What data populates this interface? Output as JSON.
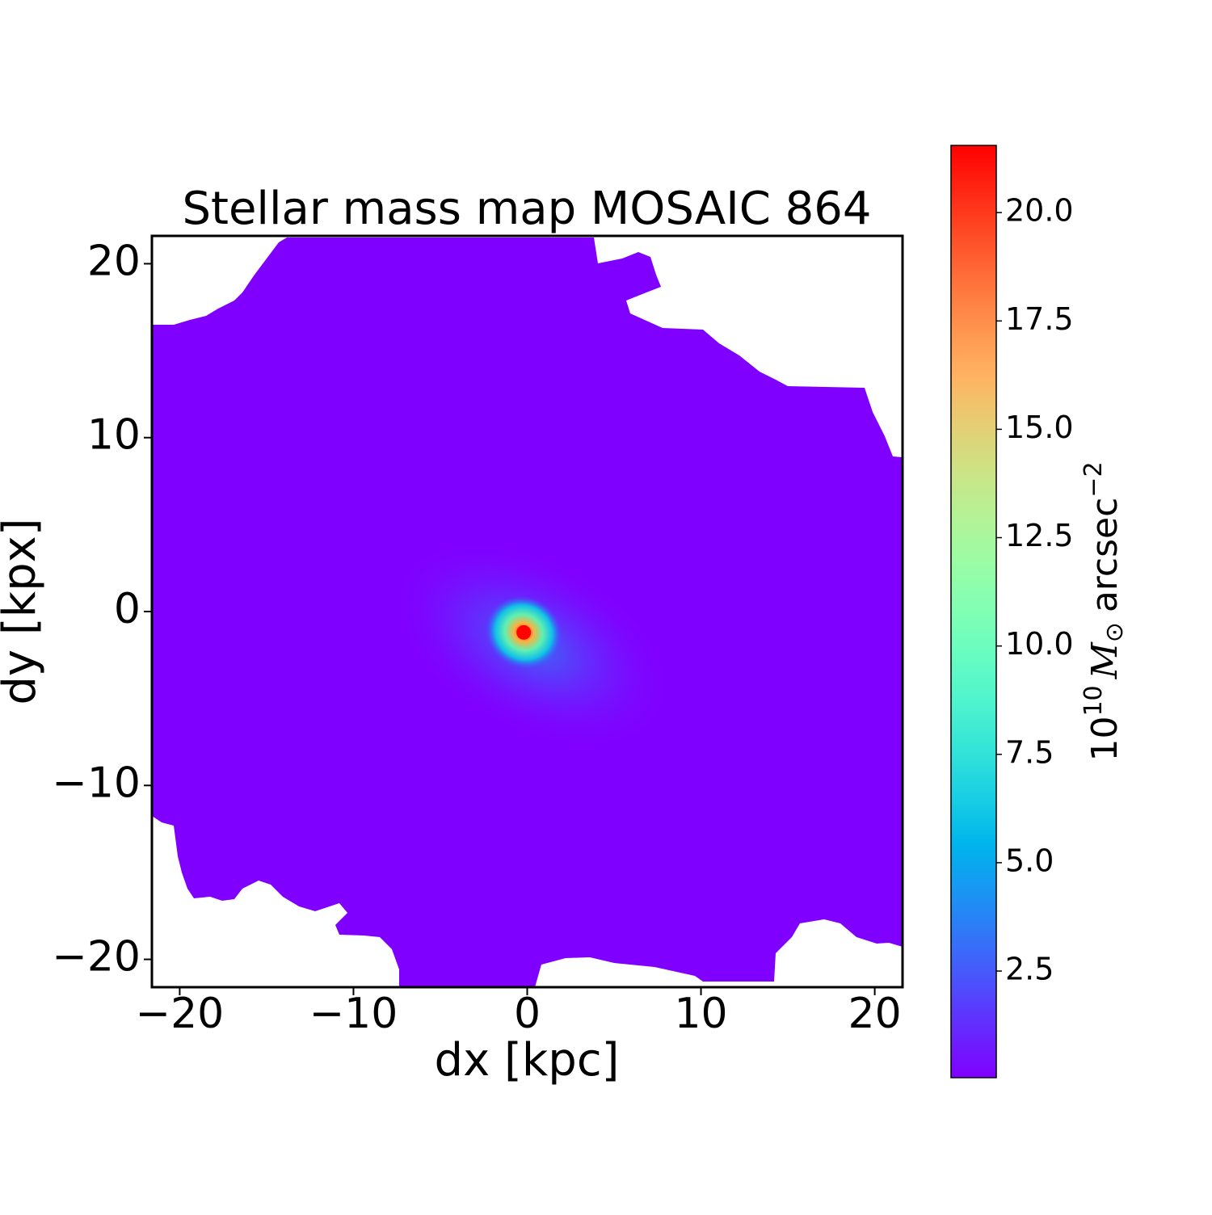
{
  "chart_data": {
    "type": "heatmap",
    "title": "Stellar mass map MOSAIC 864",
    "xlabel": "dx [kpc]",
    "ylabel": "dy [kpx]",
    "xlim": [
      -21.6,
      21.6
    ],
    "ylim": [
      -21.6,
      21.6
    ],
    "xticks": [
      {
        "value": -20,
        "label": "−20"
      },
      {
        "value": -10,
        "label": "−10"
      },
      0,
      10,
      20
    ],
    "yticks": [
      {
        "value": -20,
        "label": "−20"
      },
      {
        "value": -10,
        "label": "−10"
      },
      0,
      10,
      20
    ],
    "colormap": "rainbow",
    "peak": {
      "x": -0.2,
      "y": -1.2,
      "value": 21.5
    },
    "colorbar": {
      "clim": [
        0.04,
        21.55
      ],
      "ticks": [
        2.5,
        {
          "value": 5,
          "label": "5.0"
        },
        7.5,
        {
          "value": 10,
          "label": "10.0"
        },
        12.5,
        {
          "value": 15,
          "label": "15.0"
        },
        17.5,
        {
          "value": 20,
          "label": "20.0"
        }
      ],
      "label": {
        "base": "10",
        "exp": "10",
        "symbol": "M",
        "sub": "⊙",
        "unit": "arcsec",
        "unit_exp": "−2"
      }
    }
  }
}
